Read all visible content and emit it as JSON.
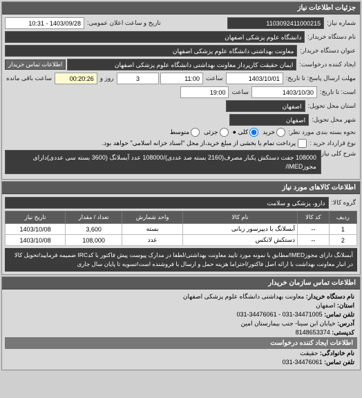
{
  "panels": {
    "details_title": "جزئیات اطلاعات نیاز",
    "contact_title": "اطلاعات تماس سازمان خریدار",
    "goods_title": "اطلاعات کالاهای مورد نیاز"
  },
  "labels": {
    "req_no": "شماره نیاز:",
    "public_datetime": "تاریخ و ساعت اعلان عمومی:",
    "buyer_name": "نام دستگاه خریدار:",
    "unit_name": "عنوان دستگاه خریدار:",
    "requester_unit": "ایجاد کننده درخواست:",
    "buyer_contact_btn": "اطلاعات تماس خریدار",
    "reply_deadline": "مهلت ارسال پاسخ: تا تاریخ:",
    "reply_from": "است: تا تاریخ:",
    "delivery_place": "استان محل تحویل:",
    "delivery_city": "شهر محل تحویل:",
    "packaging": "نحوه بسته بندی مورد نظر:",
    "contract_type": "نوع قرارداد خرید :",
    "radio_cash": "خرید",
    "radio_small": "جزئی",
    "radio_all": "کلی ●",
    "radio_medium": "متوسط",
    "payment_note": "پرداخت تمام یا بخشی از مبلغ خرید،از محل \"اسناد خزانه اسلامی\" خواهد بود.",
    "general_desc": "شرح کلی نیاز:",
    "goods_group": "گروه کالا:",
    "time_label": "ساعت",
    "day_label": "روز و",
    "remain_label": "ساعت باقی مانده",
    "contact_buyer_unit": "نام دستگاه خریدار:",
    "contact_province": "استان:",
    "contact_phone": "تلفن تماس:",
    "contact_address": "آدرس:",
    "contact_postal": "کدپستی:",
    "creator_header": "اطلاعات ایجاد کننده درخواست",
    "creator_family": "نام خانوادگی:",
    "creator_phone": "تلفن تماس:"
  },
  "fields": {
    "req_no": "1103092411000215",
    "public_datetime": "1403/09/28 - 10:31",
    "buyer_name": "دانشگاه علوم پزشکی اصفهان",
    "unit_name": "معاونت بهداشتی دانشگاه علوم پزشکی اصفهان",
    "requester_unit": "ایمان حقیقت کارپرداز معاونت بهداشتی دانشگاه علوم پزشکی اصفهان",
    "reply_date": "1403/10/01",
    "reply_time": "11:00",
    "reply_days": "3",
    "reply_remain": "00:20:26",
    "from_date": "1403/10/30",
    "from_time": "19:00",
    "delivery_place": "اصفهان",
    "delivery_city": "اصفهان",
    "general_desc": "108000 جفت دستکش یکبار مصرف(2160 بسته صد عددی)/108000 عدد آبسلانگ (3600 بسته سی عددی)دارای مجوزIMED/",
    "goods_group": "دارو، پزشکی و سلامت",
    "note": "آبسلانگ دارای مجوزIMED/مطابق با نمونه مورد تایید معاونت بهداشتی/لطفا در مدارک پیوست پیش فاکتور با کدIRC ضمیمه فرمایید/تحویل کالا در انبار معاونت بهداشت با ارائه اصل فاکتور/احتراما هزینه حمل و ارسال با فروشنده است/تسویه تا پایان سال جاری"
  },
  "radios": {
    "cash_checked": false,
    "all_checked": true,
    "small_checked": false,
    "medium_checked": false
  },
  "payment_checked": false,
  "table": {
    "headers": {
      "row": "ردیف",
      "code": "کد کالا",
      "name": "نام کالا",
      "unit": "واحد شمارش",
      "qty": "تعداد / مقدار",
      "date": "تاریخ نیاز"
    },
    "rows": [
      {
        "row": "1",
        "code": "--",
        "name": "آبسلانگ با دیپرسور زبانی",
        "unit": "بسته",
        "qty": "3,600",
        "date": "1403/10/08"
      },
      {
        "row": "2",
        "code": "--",
        "name": "دستکش لاتکس",
        "unit": "عدد",
        "qty": "108,000",
        "date": "1403/10/08"
      }
    ]
  },
  "contact": {
    "buyer_unit": "معاونت بهداشتی دانشگاه علوم پزشکی اصفهان",
    "province": "اصفهان",
    "phone": "34471005-031 - 34476061-031",
    "address": "خیابان ابن سینا- جنب بیمارستان امین",
    "postal": "8148653374",
    "creator_family": "حقیقت",
    "creator_phone": "34476061-031"
  }
}
